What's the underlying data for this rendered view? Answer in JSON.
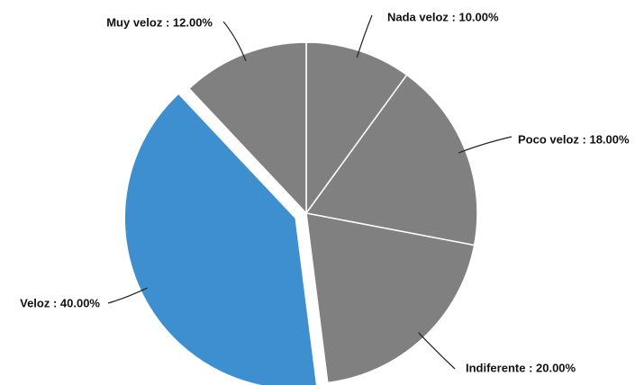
{
  "chart_data": {
    "type": "pie",
    "values": [
      10,
      18,
      20,
      40,
      12
    ],
    "value_labels": [
      "Nada veloz : 10.00%",
      "Poco veloz : 18.00%",
      "Indiferente : 20.00%",
      "Veloz : 40.00%",
      "Muy veloz : 12.00%"
    ],
    "colors": [
      "#808080",
      "#808080",
      "#808080",
      "#3d8fcf",
      "#808080"
    ],
    "exploded": [
      false,
      false,
      false,
      true,
      false
    ]
  }
}
